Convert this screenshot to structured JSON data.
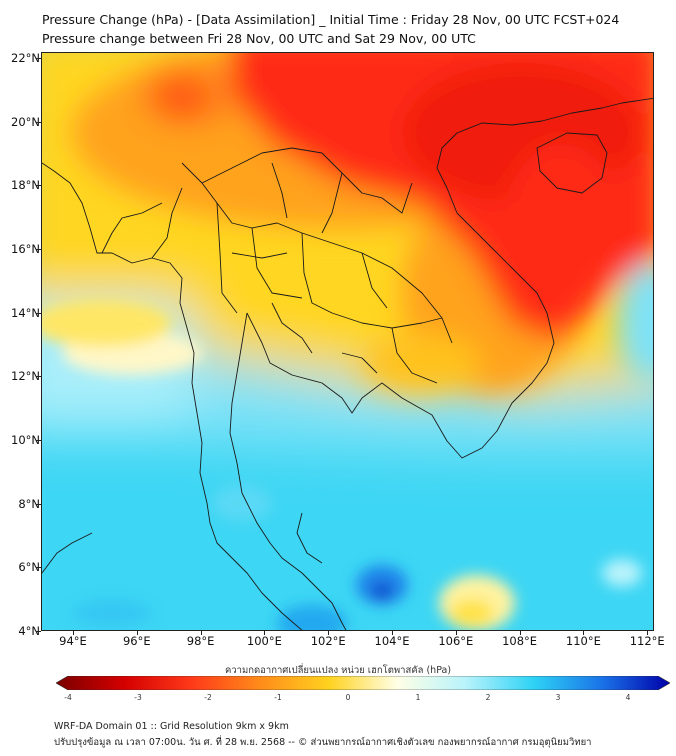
{
  "header": {
    "title_line1": "Pressure Change (hPa) - [Data Assimilation] _ Initial Time : Friday 28 Nov, 00 UTC FCST+024",
    "title_line2": "Pressure change between Fri 28 Nov, 00 UTC and Sat 29 Nov, 00 UTC"
  },
  "map": {
    "lat_labels": [
      "22°N",
      "20°N",
      "18°N",
      "16°N",
      "14°N",
      "12°N",
      "10°N",
      "8°N",
      "6°N",
      "4°N"
    ],
    "lon_labels": [
      "94°E",
      "96°E",
      "98°E",
      "100°E",
      "102°E",
      "104°E",
      "106°E",
      "108°E",
      "110°E",
      "112°E"
    ]
  },
  "colorbar": {
    "title": "ความกดอากาศเปลี่ยนแปลง หน่วย เฮกโตพาสคัล (hPa)",
    "tick_labels": [
      "-4",
      "-3",
      "-2",
      "-1",
      "0",
      "1",
      "2",
      "3",
      "4"
    ],
    "colors": [
      "#7a0000",
      "#d40000",
      "#ff3a1a",
      "#ff8c1a",
      "#ffd21f",
      "#ffffe6",
      "#b8f3fb",
      "#2ed2f5",
      "#1a73e8",
      "#0000a8"
    ]
  },
  "footer": {
    "line1": "WRF-DA Domain 01 :: Grid Resolution 9km x 9km",
    "line2": "ปรับปรุงข้อมูล ณ เวลา 07:00น. วัน ศ. ที่ 28 พ.ย. 2568 -- © ส่วนพยากรณ์อากาศเชิงตัวเลข กองพยากรณ์อากาศ กรมอุตุนิยมวิทยา"
  }
}
